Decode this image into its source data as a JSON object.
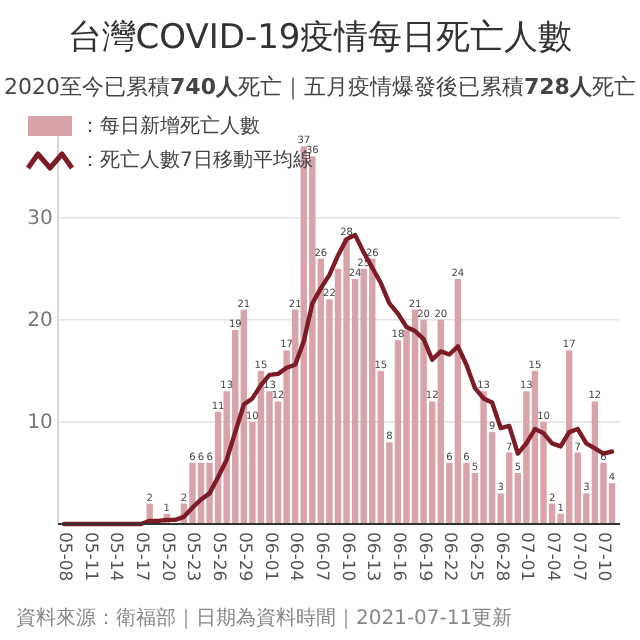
{
  "chart_data": {
    "type": "bar",
    "title": "台灣COVID-19疫情每日死亡人數",
    "subtitle": "2020至今已累積**740人**死亡｜五月疫情爆發後已累積**728人**死亡",
    "categories": [
      "05-08",
      null,
      null,
      "05-11",
      null,
      null,
      "05-14",
      null,
      null,
      "05-17",
      null,
      null,
      "05-20",
      null,
      null,
      "05-23",
      null,
      null,
      "05-26",
      null,
      null,
      "05-29",
      null,
      null,
      "06-01",
      null,
      null,
      "06-04",
      null,
      null,
      "06-07",
      null,
      null,
      "06-10",
      null,
      null,
      "06-13",
      null,
      null,
      "06-16",
      null,
      null,
      "06-19",
      null,
      null,
      "06-22",
      null,
      null,
      "06-25",
      null,
      null,
      "06-28",
      null,
      null,
      "07-01",
      null,
      null,
      "07-04",
      null,
      null,
      "07-07",
      null,
      null,
      "07-10",
      null
    ],
    "series": [
      {
        "name": "：每日新增死亡人數",
        "color": "#d9a3aa",
        "values": [
          0,
          0,
          0,
          0,
          0,
          0,
          0,
          0,
          0,
          0,
          2,
          0,
          1,
          0,
          2,
          6,
          6,
          6,
          11,
          13,
          19,
          21,
          10,
          15,
          13,
          12,
          17,
          21,
          37,
          36,
          26,
          22,
          25,
          28,
          24,
          25,
          26,
          15,
          8,
          18,
          19,
          21,
          20,
          12,
          20,
          6,
          24,
          6,
          5,
          13,
          9,
          3,
          7,
          5,
          13,
          15,
          10,
          2,
          1,
          17,
          7,
          3,
          12,
          6,
          4
        ],
        "value_labels": [
          null,
          null,
          null,
          null,
          null,
          null,
          null,
          null,
          null,
          null,
          "2",
          null,
          "1",
          null,
          "2",
          "6",
          "6",
          "6",
          "11",
          "13",
          "19",
          "21",
          "10",
          "15",
          "13",
          "12",
          "17",
          "21",
          "37",
          "36",
          "26",
          "22",
          null,
          "28",
          "24",
          "25",
          "26",
          "15",
          "8",
          "18",
          null,
          "21",
          "20",
          "12",
          "20",
          "6",
          "24",
          "6",
          "5",
          "13",
          "9",
          "3",
          "7",
          "5",
          "13",
          "15",
          "10",
          "2",
          "1",
          "17",
          "7",
          "3",
          "12",
          "6",
          "4"
        ]
      },
      {
        "name": "：死亡人數7日移動平均線",
        "type": "line",
        "color": "#7b1c26",
        "values": [
          0,
          0,
          0,
          0,
          0,
          0,
          0,
          0,
          0,
          0,
          0.3,
          0.3,
          0.4,
          0.4,
          0.7,
          1.6,
          2.4,
          3.0,
          4.6,
          6.3,
          9.0,
          11.7,
          12.3,
          13.6,
          14.6,
          14.7,
          15.3,
          15.6,
          17.9,
          21.6,
          23.1,
          24.4,
          26.3,
          27.9,
          28.3,
          26.6,
          25.1,
          23.6,
          21.6,
          20.6,
          19.3,
          18.9,
          18.1,
          16.1,
          16.9,
          16.6,
          17.4,
          15.6,
          13.3,
          12.3,
          11.9,
          9.4,
          9.6,
          6.9,
          7.9,
          9.3,
          8.9,
          7.9,
          7.6,
          9.0,
          9.3,
          7.9,
          7.4,
          6.9,
          7.1
        ]
      }
    ],
    "ylim": [
      0,
      38
    ],
    "yticks": [
      10,
      20,
      30
    ],
    "grid": "y",
    "legend": "top left",
    "annotations": [
      "資料來源：衛福部｜日期為資料時間｜2021-07-11更新"
    ]
  }
}
